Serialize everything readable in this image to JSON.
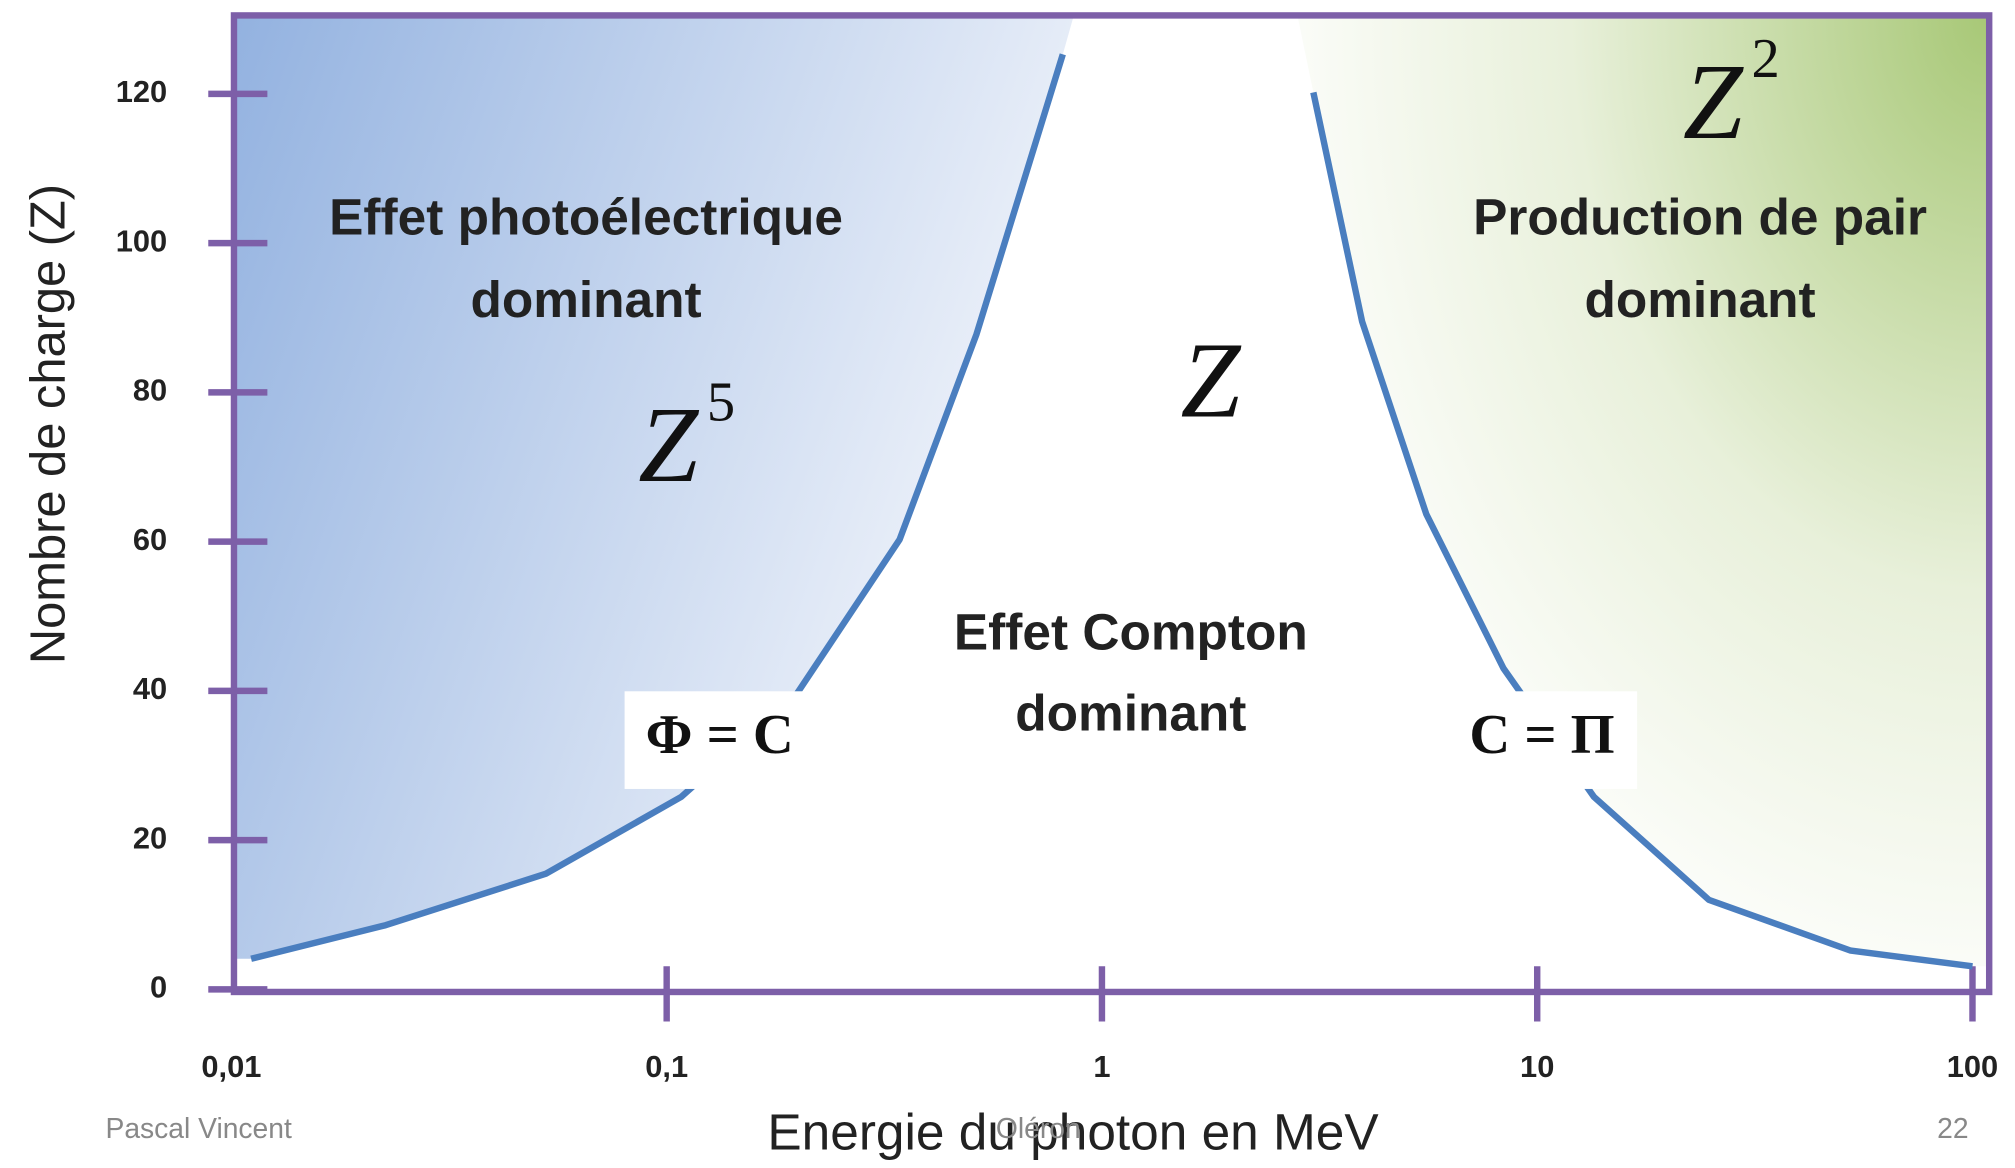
{
  "chart_data": {
    "type": "line",
    "xlabel": "Energie du photon en MeV",
    "ylabel": "Nombre de charge (Z)",
    "xscale": "log",
    "xlim": [
      0.01,
      100
    ],
    "xticks": [
      {
        "value": 0.01,
        "label": "0,01"
      },
      {
        "value": 0.1,
        "label": "0,1"
      },
      1,
      10,
      100
    ],
    "ylim": [
      0,
      130
    ],
    "yticks": [
      0,
      20,
      40,
      60,
      80,
      100,
      120
    ],
    "series": [
      {
        "color": "#4a7ebf",
        "x": [
          0.0111,
          0.0226,
          0.0528,
          0.108,
          0.199,
          0.343,
          0.515,
          0.813
        ],
        "values": [
          4.1,
          8.6,
          15.5,
          25.8,
          39.6,
          60.3,
          87.8,
          125.3
        ]
      },
      {
        "color": "#4a7ebf",
        "x": [
          3.06,
          3.96,
          5.56,
          8.37,
          13.5,
          24.8,
          52.5,
          100
        ],
        "values": [
          120.2,
          89.5,
          63.7,
          43.0,
          25.8,
          12.0,
          5.2,
          3.1
        ]
      }
    ],
    "annotations": [
      {
        "text": "Effet photoélectrique"
      },
      {
        "text": "dominant"
      },
      {
        "text": "Z",
        "superscript": "5"
      },
      {
        "text": "Φ = C"
      },
      {
        "text": "Z"
      },
      {
        "text": "Effet Compton"
      },
      {
        "text": "dominant"
      },
      {
        "text": "Z",
        "superscript": "2"
      },
      {
        "text": "Production de pair"
      },
      {
        "text": "dominant"
      },
      {
        "text": "C = Π"
      }
    ]
  },
  "footer": {
    "author": "Pascal Vincent",
    "place": "Oléron",
    "page": "22"
  }
}
